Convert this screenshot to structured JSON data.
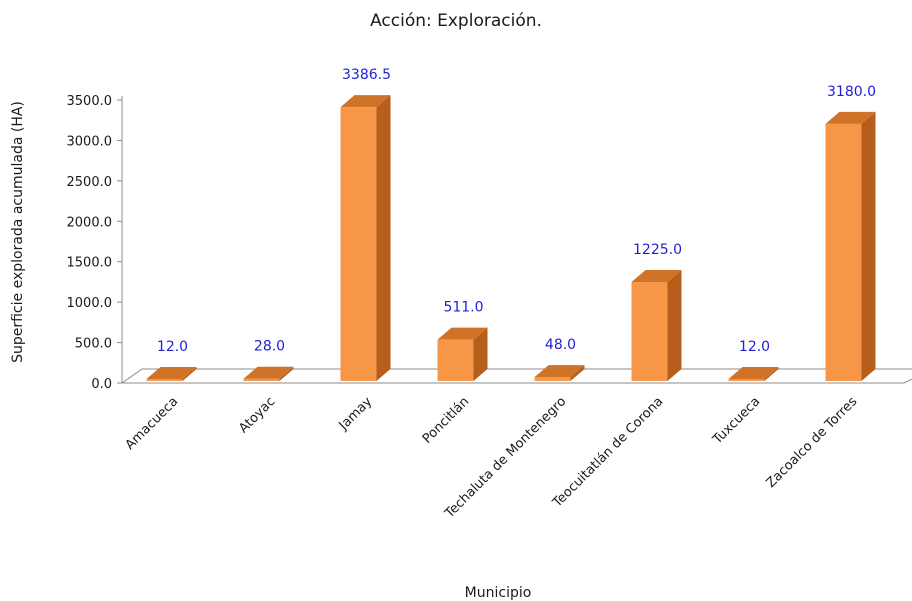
{
  "chart_data": {
    "type": "bar",
    "title": "Acción: Exploración.",
    "xlabel": "Municipio",
    "ylabel": "Superficie explorada acumulada (HA)",
    "categories": [
      "Amacueca",
      "Atoyac",
      "Jamay",
      "Poncitlán",
      "Techaluta de Montenegro",
      "Teocuitatlán de Corona",
      "Tuxcueca",
      "Zacoalco de Torres"
    ],
    "values": [
      12.0,
      28.0,
      3386.5,
      511.0,
      48.0,
      1225.0,
      12.0,
      3180.0
    ],
    "data_labels": [
      "12.0",
      "28.0",
      "3386.5",
      "511.0",
      "48.0",
      "1225.0",
      "12.0",
      "3180.0"
    ],
    "ylim": [
      0,
      3500
    ],
    "yticks": [
      "0.0",
      "500.0",
      "1000.0",
      "1500.0",
      "2000.0",
      "2500.0",
      "3000.0",
      "3500.0"
    ],
    "grid": false,
    "legend": "none",
    "colors": {
      "bar_front": "#f79646",
      "bar_side": "#b65e1c",
      "bar_top": "#cf7328",
      "label": "#1f1fd6",
      "axis": "#8c8c8c"
    }
  }
}
